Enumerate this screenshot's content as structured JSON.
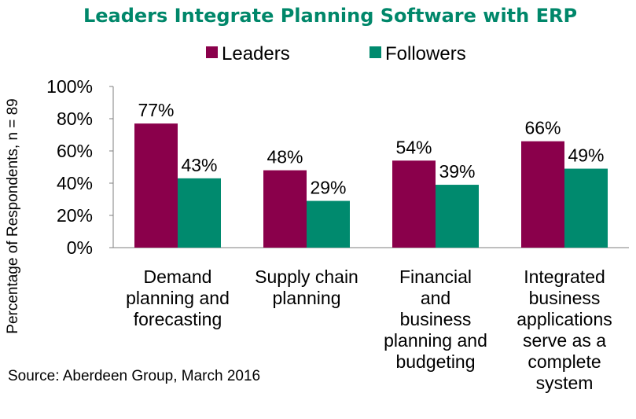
{
  "chart_data": {
    "type": "bar",
    "title": "Leaders Integrate Planning Software with ERP",
    "ylabel": "Percentage of Respondents, n = 89",
    "xlabel": "",
    "ylim": [
      0,
      100
    ],
    "yticks": [
      "0%",
      "20%",
      "40%",
      "60%",
      "80%",
      "100%"
    ],
    "categories": [
      [
        "Demand",
        "planning and",
        "forecasting"
      ],
      [
        "Supply chain",
        "planning"
      ],
      [
        "Financial",
        "and",
        "business",
        "planning and",
        "budgeting"
      ],
      [
        "Integrated",
        "business",
        "applications",
        "serve as a",
        "complete",
        "system"
      ]
    ],
    "series": [
      {
        "name": "Leaders",
        "color": "#8A004B",
        "values": [
          77,
          48,
          54,
          66
        ],
        "labels": [
          "77%",
          "48%",
          "54%",
          "66%"
        ]
      },
      {
        "name": "Followers",
        "color": "#008A6E",
        "values": [
          43,
          29,
          39,
          49
        ],
        "labels": [
          "43%",
          "29%",
          "39%",
          "49%"
        ]
      }
    ],
    "legend_position": "top",
    "grid": false,
    "title_color": "#00876A",
    "source": "Source: Aberdeen Group, March 2016"
  }
}
